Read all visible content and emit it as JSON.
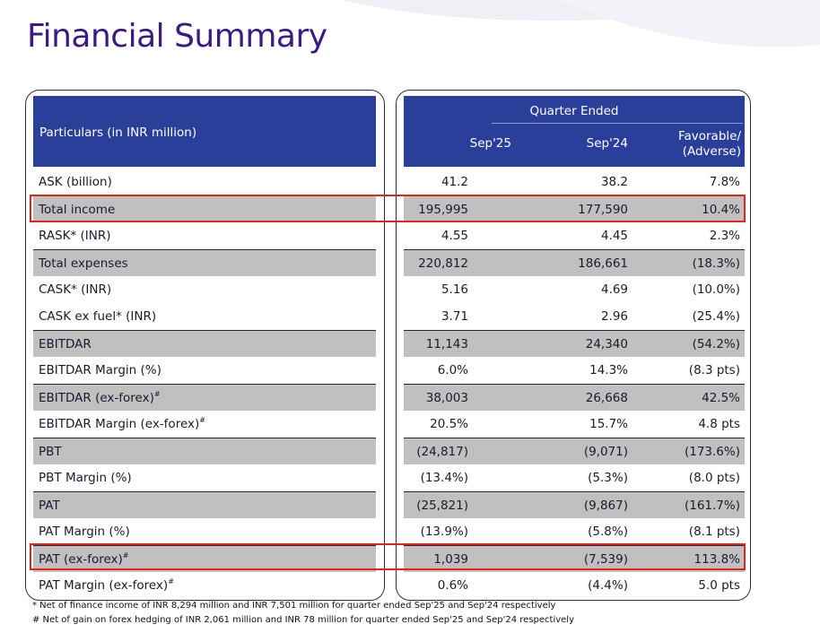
{
  "title": "Financial Summary",
  "header": {
    "particulars": "Particulars (in INR million)",
    "quarter_ended": "Quarter Ended",
    "col1": "Sep'25",
    "col2": "Sep'24",
    "col3_line1": "Favorable/",
    "col3_line2": "(Adverse)"
  },
  "rows": [
    {
      "label": "ASK (billion)",
      "sup": "",
      "v1": "41.2",
      "v2": "38.2",
      "v3": "7.8%",
      "shaded": false
    },
    {
      "label": "Total income",
      "sup": "",
      "v1": "195,995",
      "v2": "177,590",
      "v3": "10.4%",
      "shaded": true
    },
    {
      "label": "RASK* (INR)",
      "sup": "",
      "v1": "4.55",
      "v2": "4.45",
      "v3": "2.3%",
      "shaded": false
    },
    {
      "label": "Total expenses",
      "sup": "",
      "v1": "220,812",
      "v2": "186,661",
      "v3": "(18.3%)",
      "shaded": true
    },
    {
      "label": "CASK* (INR)",
      "sup": "",
      "v1": "5.16",
      "v2": "4.69",
      "v3": "(10.0%)",
      "shaded": false
    },
    {
      "label": "CASK ex fuel* (INR)",
      "sup": "",
      "v1": "3.71",
      "v2": "2.96",
      "v3": "(25.4%)",
      "shaded": false
    },
    {
      "label": "EBITDAR",
      "sup": "",
      "v1": "11,143",
      "v2": "24,340",
      "v3": "(54.2%)",
      "shaded": true
    },
    {
      "label": "EBITDAR Margin (%)",
      "sup": "",
      "v1": "6.0%",
      "v2": "14.3%",
      "v3": "(8.3 pts)",
      "shaded": false
    },
    {
      "label": "EBITDAR (ex-forex)",
      "sup": "#",
      "v1": "38,003",
      "v2": "26,668",
      "v3": "42.5%",
      "shaded": true
    },
    {
      "label": "EBITDAR Margin (ex-forex)",
      "sup": "#",
      "v1": "20.5%",
      "v2": "15.7%",
      "v3": "4.8 pts",
      "shaded": false
    },
    {
      "label": "PBT",
      "sup": "",
      "v1": "(24,817)",
      "v2": "(9,071)",
      "v3": "(173.6%)",
      "shaded": true
    },
    {
      "label": "PBT Margin (%)",
      "sup": "",
      "v1": "(13.4%)",
      "v2": "(5.3%)",
      "v3": "(8.0 pts)",
      "shaded": false
    },
    {
      "label": "PAT",
      "sup": "",
      "v1": "(25,821)",
      "v2": "(9,867)",
      "v3": "(161.7%)",
      "shaded": true
    },
    {
      "label": "PAT Margin (%)",
      "sup": "",
      "v1": "(13.9%)",
      "v2": "(5.8%)",
      "v3": "(8.1 pts)",
      "shaded": false
    },
    {
      "label": "PAT (ex-forex)",
      "sup": "#",
      "v1": "1,039",
      "v2": "(7,539)",
      "v3": "113.8%",
      "shaded": true
    },
    {
      "label": "PAT Margin (ex-forex)",
      "sup": "#",
      "v1": "0.6%",
      "v2": "(4.4%)",
      "v3": "5.0 pts",
      "shaded": false
    }
  ],
  "footnotes": {
    "note1": "* Net of finance income of INR 8,294 million and INR 7,501 million for quarter ended Sep'25 and Sep'24 respectively",
    "note2": "#  Net of gain on forex hedging of INR 2,061 million and INR 78 million for quarter ended Sep'25 and Sep'24 respectively"
  },
  "colors": {
    "title": "#3b1a86",
    "header_bg": "#2a3f9a",
    "shaded_row": "#c0c0c0",
    "highlight": "#e0251b"
  }
}
